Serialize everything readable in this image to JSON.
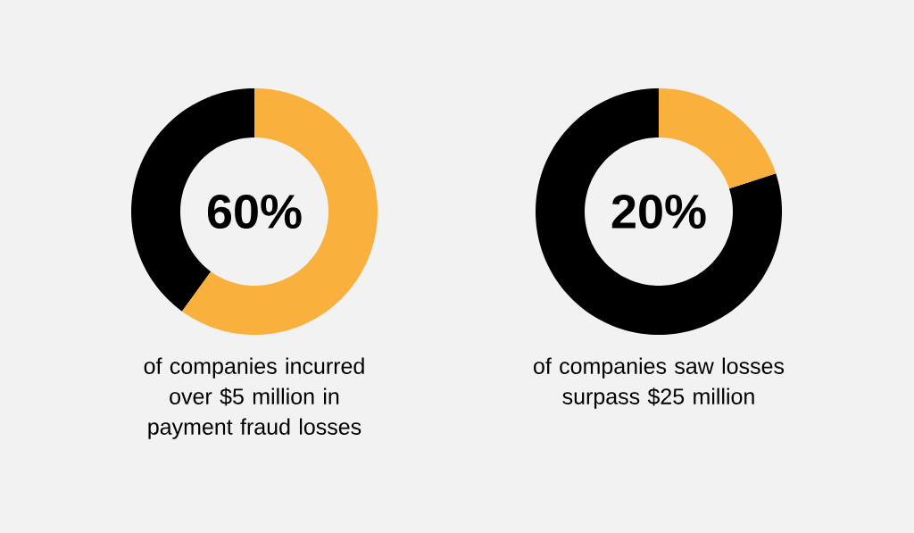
{
  "chart_data": [
    {
      "type": "donut",
      "title": "of companies incurred over $5 million in payment fraud losses",
      "categories": [
        null,
        null
      ],
      "values": [
        60,
        40
      ],
      "colors": [
        "#f9b03c",
        "#000000"
      ],
      "annotations": [
        "60%"
      ]
    },
    {
      "type": "donut",
      "title": "of companies saw losses surpass $25 million",
      "categories": [
        null,
        null
      ],
      "values": [
        20,
        80
      ],
      "colors": [
        "#f9b03c",
        "#000000"
      ],
      "annotations": [
        "20%"
      ]
    }
  ]
}
